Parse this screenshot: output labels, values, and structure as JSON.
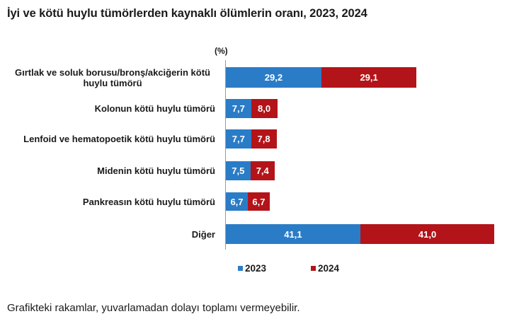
{
  "chart_data": {
    "type": "bar",
    "orientation": "horizontal",
    "stacked": true,
    "title": "İyi ve kötü huylu tümörlerden kaynaklı ölümlerin oranı, 2023, 2024",
    "unit_label": "(%)",
    "xlabel": "",
    "ylabel": "",
    "categories": [
      "Gırtlak ve soluk borusu/bronş/akciğerin kötü huylu tümörü",
      "Kolonun kötü huylu tümörü",
      "Lenfoid ve hematopoetik kötü huylu tümörü",
      "Midenin kötü huylu tümörü",
      "Pankreasın kötü huylu tümörü",
      "Diğer"
    ],
    "series": [
      {
        "name": "2023",
        "color": "#2a7cc7",
        "values": [
          29.2,
          7.7,
          7.7,
          7.5,
          6.7,
          41.1
        ],
        "labels": [
          "29,2",
          "7,7",
          "7,7",
          "7,5",
          "6,7",
          "41,1"
        ]
      },
      {
        "name": "2024",
        "color": "#b31419",
        "values": [
          29.1,
          8.0,
          7.8,
          7.4,
          6.7,
          41.0
        ],
        "labels": [
          "29,1",
          "8,0",
          "7,8",
          "7,4",
          "6,7",
          "41,0"
        ]
      }
    ],
    "legend_position": "bottom",
    "grid": false,
    "note": "Grafikteki rakamlar, yuvarlamadan dolayı toplamı vermeyebilir."
  }
}
